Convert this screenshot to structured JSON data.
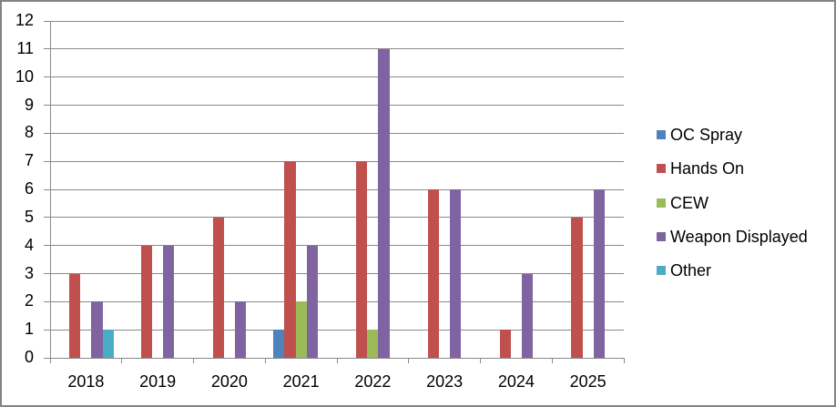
{
  "chart_data": {
    "type": "bar",
    "title": "",
    "categories": [
      "2018",
      "2019",
      "2020",
      "2021",
      "2022",
      "2023",
      "2024",
      "2025"
    ],
    "series": [
      {
        "name": "OC Spray",
        "color": "#4F81BD",
        "values": [
          0,
          0,
          0,
          1,
          0,
          0,
          0,
          0
        ]
      },
      {
        "name": "Hands On",
        "color": "#C0504D",
        "values": [
          3,
          4,
          5,
          7,
          7,
          6,
          1,
          5
        ]
      },
      {
        "name": "CEW",
        "color": "#9BBB59",
        "values": [
          0,
          0,
          0,
          2,
          1,
          0,
          0,
          0
        ]
      },
      {
        "name": "Weapon Displayed",
        "color": "#8064A2",
        "values": [
          2,
          4,
          2,
          4,
          11,
          6,
          3,
          6
        ]
      },
      {
        "name": "Other",
        "color": "#4BACC6",
        "values": [
          1,
          0,
          0,
          0,
          0,
          0,
          0,
          0
        ]
      }
    ],
    "xlabel": "",
    "ylabel": "",
    "ylim": [
      0,
      12
    ],
    "ytick_step": 1,
    "grid": true,
    "legend_position": "right",
    "styles": {
      "gridline_color": "#898989",
      "axis_color": "#898989",
      "tick_color": "#898989",
      "text_color": "#000000",
      "frame_border_color": "#848484",
      "background_color": "#FFFFFF"
    }
  }
}
